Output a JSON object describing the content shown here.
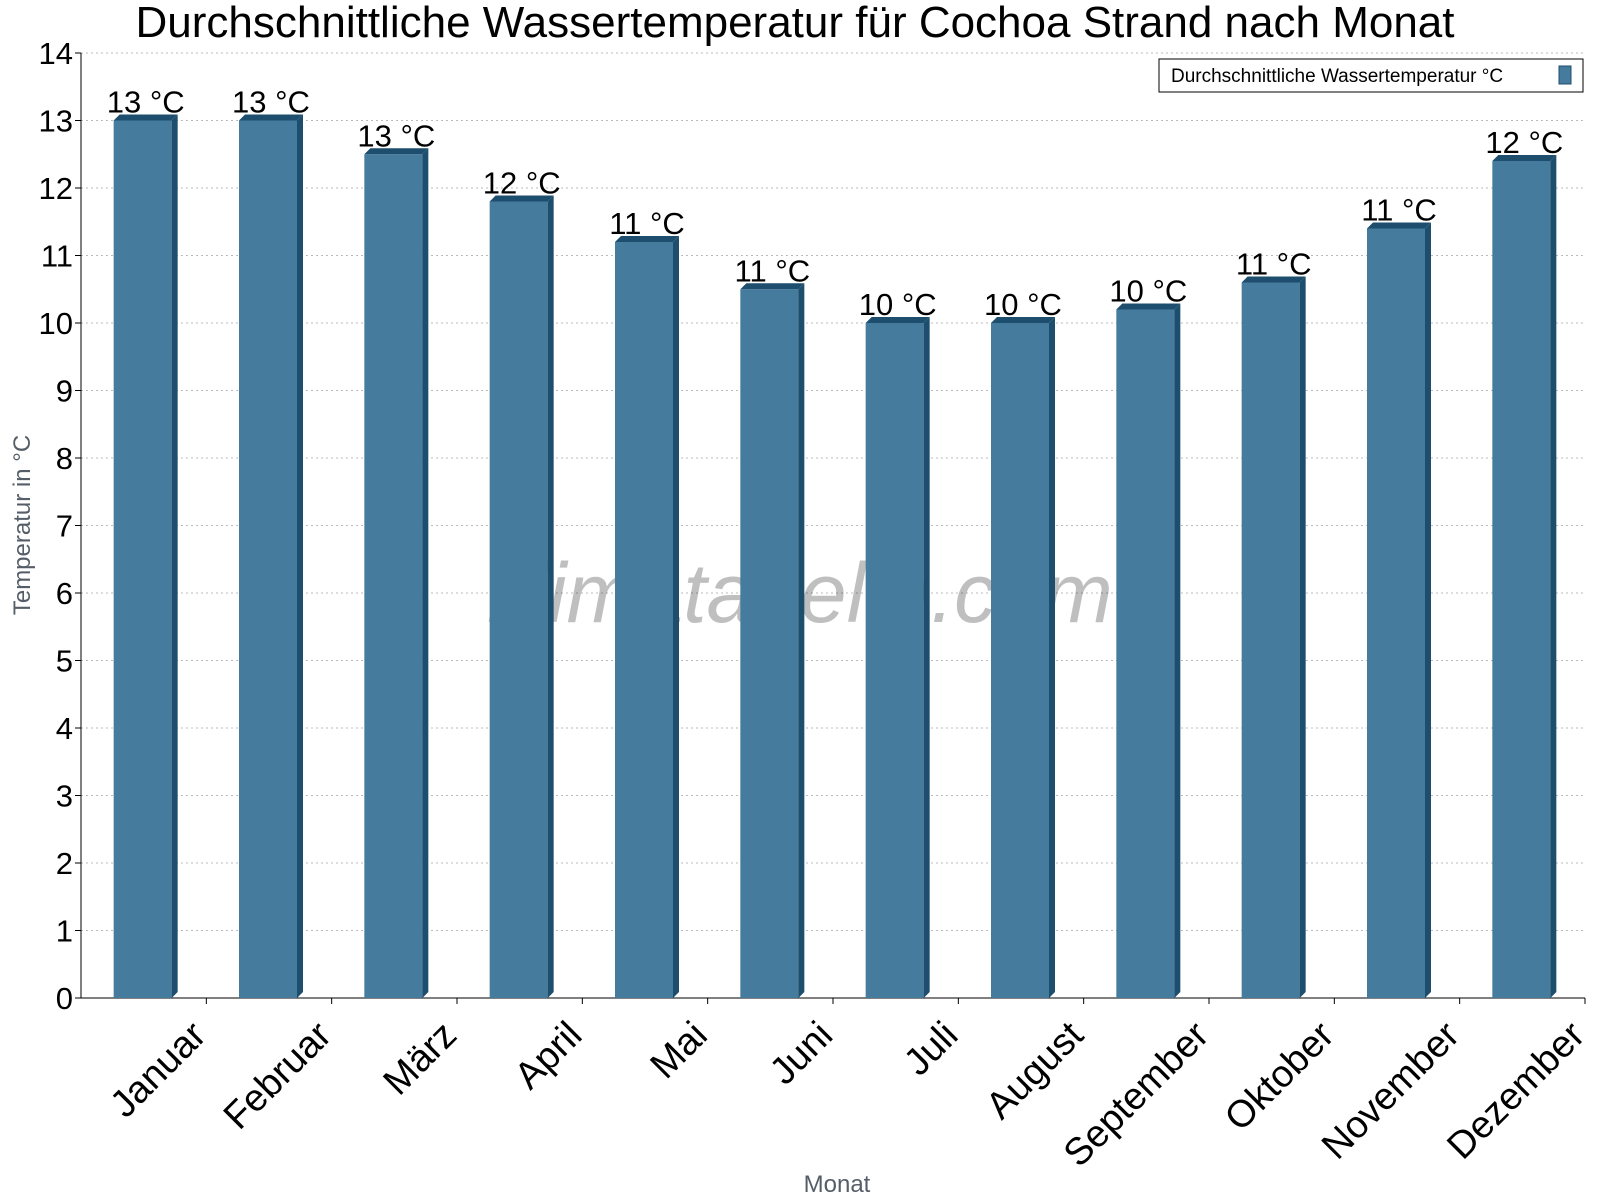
{
  "chart_data": {
    "type": "bar",
    "title": "Durchschnittliche Wassertemperatur für Cochoa Strand nach Monat",
    "xlabel": "Monat",
    "ylabel": "Temperatur in °C",
    "categories": [
      "Januar",
      "Februar",
      "März",
      "April",
      "Mai",
      "Juni",
      "Juli",
      "August",
      "September",
      "Oktober",
      "November",
      "Dezember"
    ],
    "series": [
      {
        "name": "Durchschnittliche Wassertemperatur °C",
        "values": [
          13.0,
          13.0,
          12.5,
          11.8,
          11.2,
          10.5,
          10.0,
          10.0,
          10.2,
          10.6,
          11.4,
          12.4
        ],
        "labels": [
          "13 °C",
          "13 °C",
          "13 °C",
          "12 °C",
          "11 °C",
          "11 °C",
          "10 °C",
          "10 °C",
          "10 °C",
          "11 °C",
          "11 °C",
          "12 °C"
        ]
      }
    ],
    "ylim": [
      0,
      14
    ],
    "yticks": [
      "0",
      "1",
      "2",
      "3",
      "4",
      "5",
      "6",
      "7",
      "8",
      "9",
      "10",
      "11",
      "12",
      "13",
      "14"
    ],
    "grid": true,
    "legend_position": "top-right",
    "colors": {
      "bar_front": "#457b9d",
      "bar_side": "#1d4e6e",
      "bar_top": "#1d4e6e",
      "grid": "#bbbbbb",
      "axis": "#000000"
    },
    "watermark": "klimatabelle.com"
  }
}
